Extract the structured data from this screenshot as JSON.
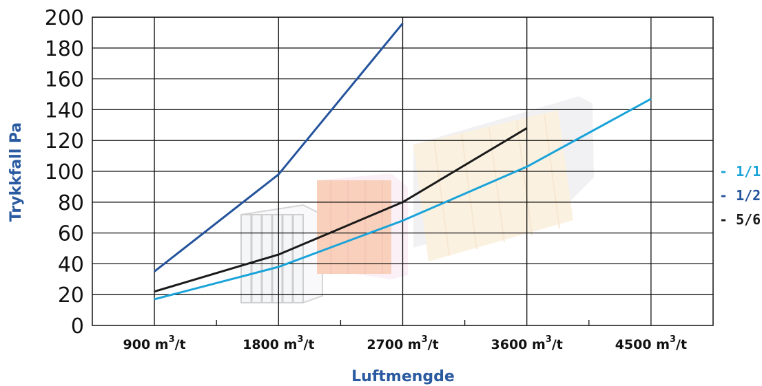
{
  "chart_data": {
    "type": "line",
    "title": "",
    "xlabel": "Luftmengde",
    "ylabel": "Trykkfall Pa",
    "categories": [
      "900",
      "1800",
      "2700",
      "3600",
      "4500"
    ],
    "category_unit": "m³/t",
    "ylim": [
      0,
      200
    ],
    "y_ticks": [
      0,
      20,
      40,
      60,
      80,
      100,
      120,
      140,
      160,
      180,
      200
    ],
    "grid": true,
    "legend_position": "right",
    "series": [
      {
        "name": "- 1/1",
        "color": "#1aa3d9",
        "values": [
          17,
          38,
          68,
          103,
          147
        ]
      },
      {
        "name": "- 1/2",
        "color": "#24539c",
        "values": [
          35,
          98,
          196,
          null,
          null
        ]
      },
      {
        "name": "- 5/6",
        "color": "#1a1a1a",
        "values": [
          22,
          46,
          80,
          128,
          null
        ]
      }
    ]
  }
}
